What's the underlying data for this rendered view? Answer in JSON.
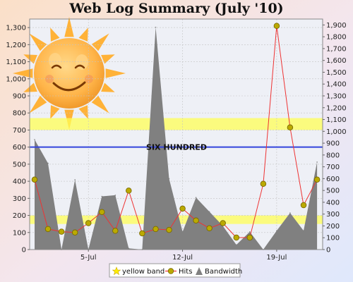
{
  "chart_data": {
    "type": "line",
    "title": "Web Log Summary (July '10)",
    "x_start": "2010-07-01",
    "x_tick_labels": [
      "5-Jul",
      "12-Jul",
      "19-Jul"
    ],
    "y_left": {
      "min": 0,
      "max": 1350,
      "step": 100
    },
    "y_right": {
      "min": 0,
      "max": 1950,
      "step": 100
    },
    "grid": true,
    "bands": [
      {
        "name": "yellow band",
        "ranges": [
          [
            150,
            200
          ],
          [
            700,
            770
          ]
        ],
        "color": "#ffff55"
      }
    ],
    "reference_line": {
      "value": 600,
      "label": "SIX HUNDRED",
      "color": "#3344dd"
    },
    "series": [
      {
        "name": "Bandwidth",
        "type": "area",
        "axis": "right",
        "color": "#808080",
        "x": [
          "2010-07-01",
          "2010-07-02",
          "2010-07-03",
          "2010-07-04",
          "2010-07-05",
          "2010-07-06",
          "2010-07-07",
          "2010-07-08",
          "2010-07-09",
          "2010-07-10",
          "2010-07-11",
          "2010-07-12",
          "2010-07-13",
          "2010-07-14",
          "2010-07-15",
          "2010-07-16",
          "2010-07-17",
          "2010-07-18",
          "2010-07-19",
          "2010-07-20",
          "2010-07-21",
          "2010-07-22"
        ],
        "values": [
          930,
          730,
          0,
          590,
          0,
          450,
          460,
          10,
          0,
          1880,
          600,
          150,
          440,
          320,
          200,
          40,
          150,
          0,
          160,
          310,
          160,
          740
        ]
      },
      {
        "name": "Hits",
        "type": "line",
        "axis": "left",
        "color": "#ee3333",
        "marker_color": "#bbaa00",
        "x": [
          "2010-07-01",
          "2010-07-02",
          "2010-07-03",
          "2010-07-04",
          "2010-07-05",
          "2010-07-06",
          "2010-07-07",
          "2010-07-08",
          "2010-07-09",
          "2010-07-10",
          "2010-07-11",
          "2010-07-12",
          "2010-07-13",
          "2010-07-14",
          "2010-07-15",
          "2010-07-16",
          "2010-07-17",
          "2010-07-18",
          "2010-07-19",
          "2010-07-20",
          "2010-07-21",
          "2010-07-22"
        ],
        "values": [
          410,
          120,
          105,
          100,
          155,
          220,
          110,
          345,
          95,
          120,
          115,
          240,
          170,
          125,
          155,
          70,
          70,
          385,
          1310,
          715,
          260,
          410
        ]
      }
    ],
    "legend": {
      "placement": "bottom",
      "items": [
        "yellow band",
        "Hits",
        "Bandwidth"
      ]
    }
  }
}
